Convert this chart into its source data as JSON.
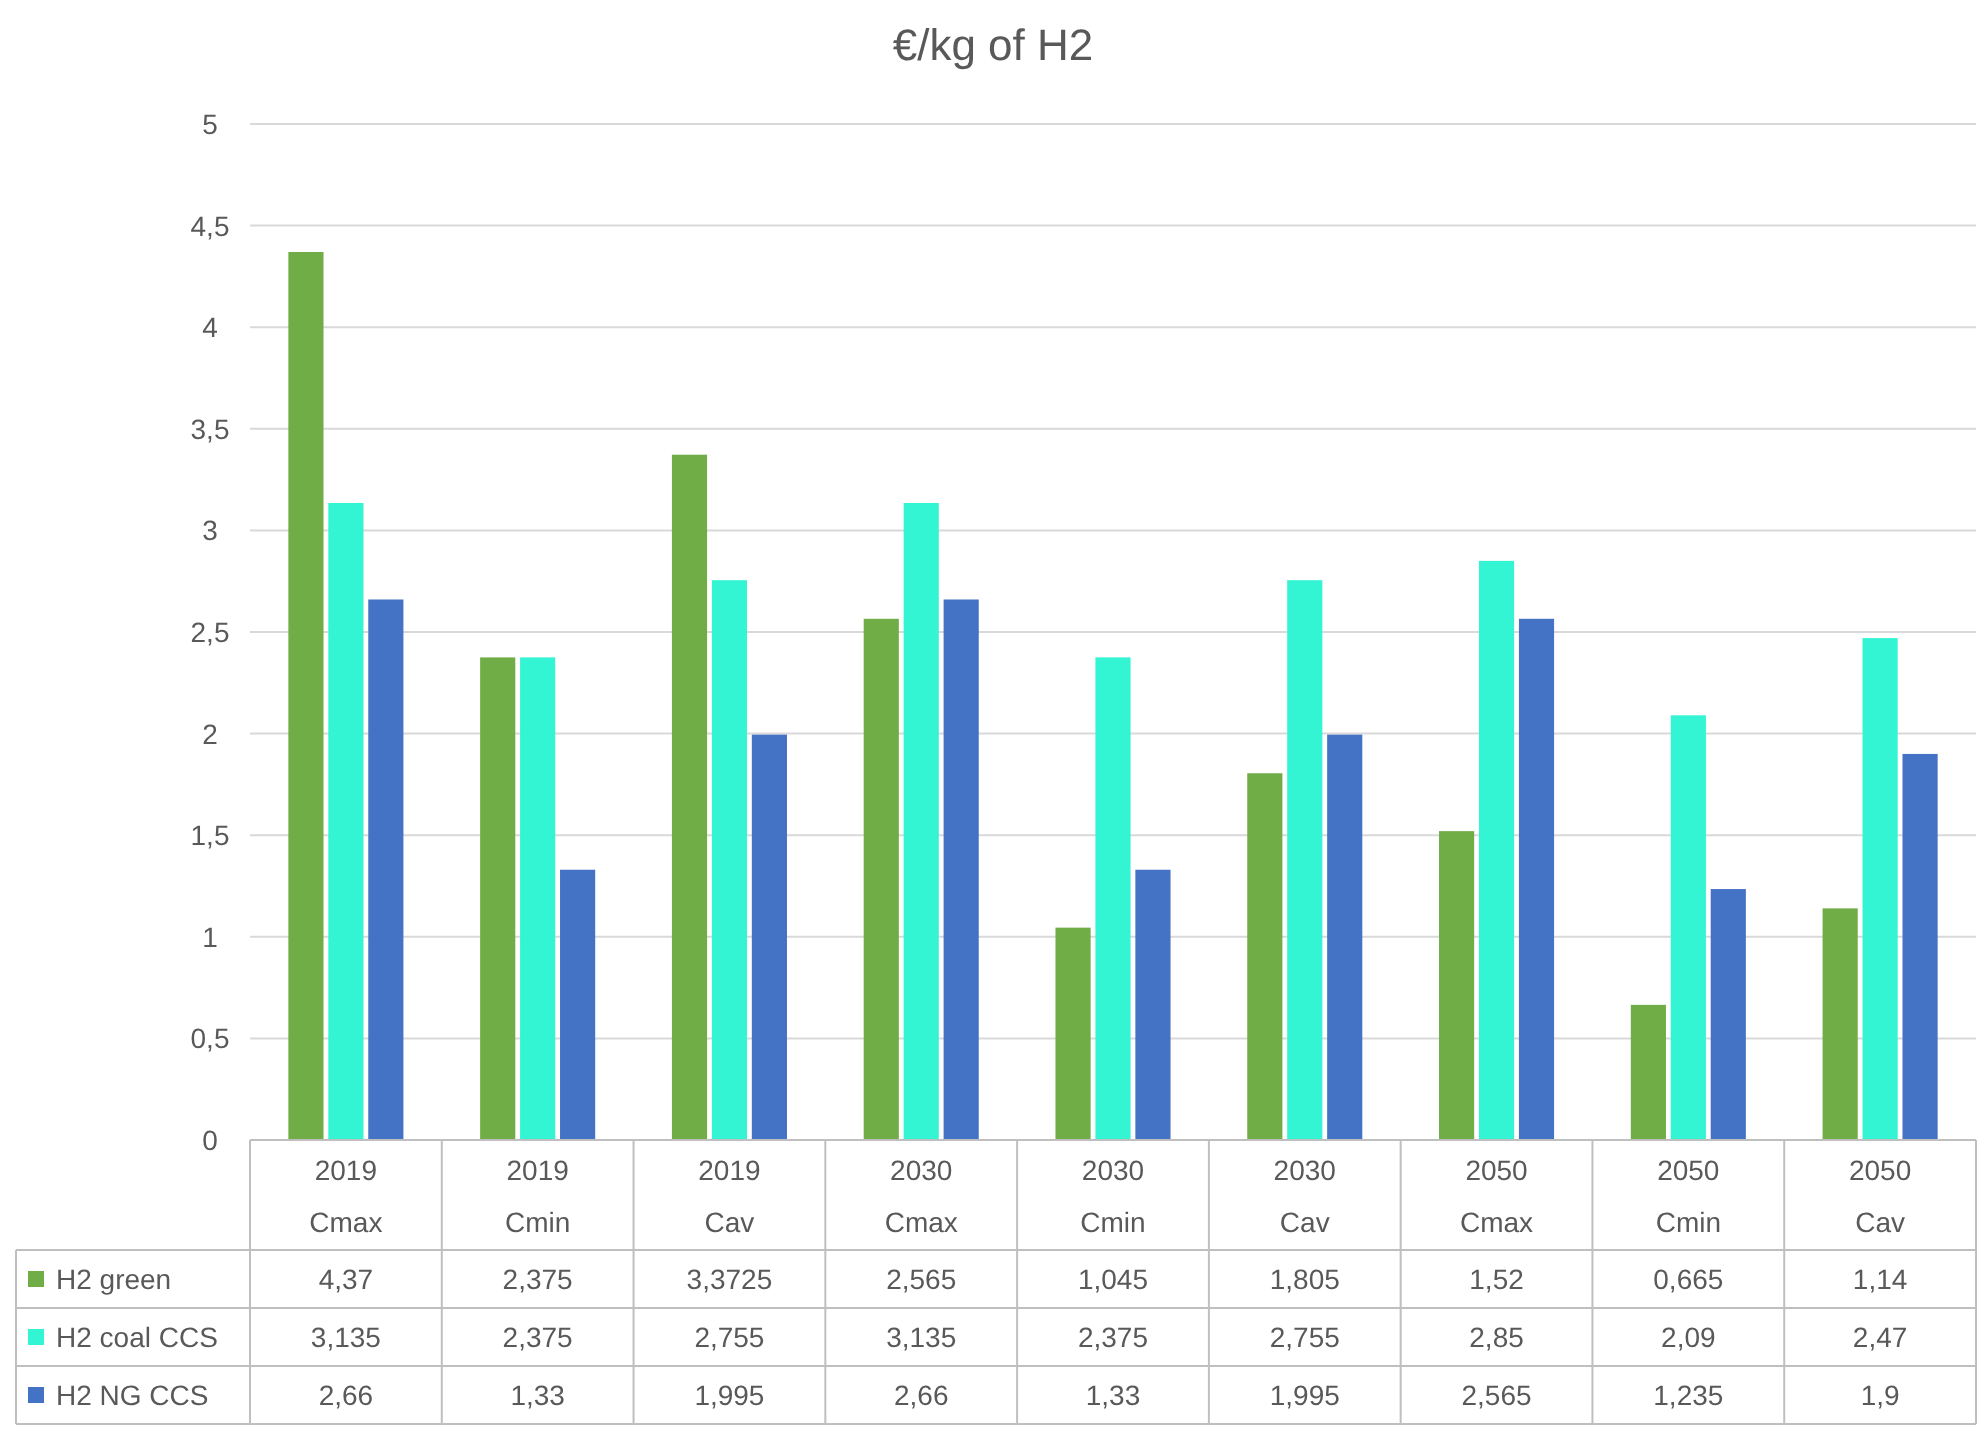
{
  "chart_data": {
    "type": "bar",
    "title": "€/kg of H2",
    "categories": [
      "2019 Cmax",
      "2019 Cmin",
      "2019 Cav",
      "2030 Cmax",
      "2030 Cmin",
      "2030 Cav",
      "2050 Cmax",
      "2050 Cmin",
      "2050 Cav"
    ],
    "series": [
      {
        "name": "H2 green",
        "color": "#70ad47",
        "values": [
          4.37,
          2.375,
          3.3725,
          2.565,
          1.045,
          1.805,
          1.52,
          0.665,
          1.14
        ],
        "value_labels": [
          "4,37",
          "2,375",
          "3,3725",
          "2,565",
          "1,045",
          "1,805",
          "1,52",
          "0,665",
          "1,14"
        ]
      },
      {
        "name": "H2 coal CCS",
        "color": "#33f5d4",
        "values": [
          3.135,
          2.375,
          2.755,
          3.135,
          2.375,
          2.755,
          2.85,
          2.09,
          2.47
        ],
        "value_labels": [
          "3,135",
          "2,375",
          "2,755",
          "3,135",
          "2,375",
          "2,755",
          "2,85",
          "2,09",
          "2,47"
        ]
      },
      {
        "name": "H2 NG CCS",
        "color": "#4472c4",
        "values": [
          2.66,
          1.33,
          1.995,
          2.66,
          1.33,
          1.995,
          2.565,
          1.235,
          1.9
        ],
        "value_labels": [
          "2,66",
          "1,33",
          "1,995",
          "2,66",
          "1,33",
          "1,995",
          "2,565",
          "1,235",
          "1,9"
        ]
      }
    ],
    "ylim": [
      0,
      5
    ],
    "yticks": [
      0,
      {
        "value": 0.5,
        "label": "0,5"
      },
      1,
      {
        "value": 1.5,
        "label": "1,5"
      },
      2,
      {
        "value": 2.5,
        "label": "2,5"
      },
      3,
      {
        "value": 3.5,
        "label": "3,5"
      },
      4,
      {
        "value": 4.5,
        "label": "4,5"
      },
      5
    ],
    "grid": "y",
    "legend": "bottom"
  }
}
